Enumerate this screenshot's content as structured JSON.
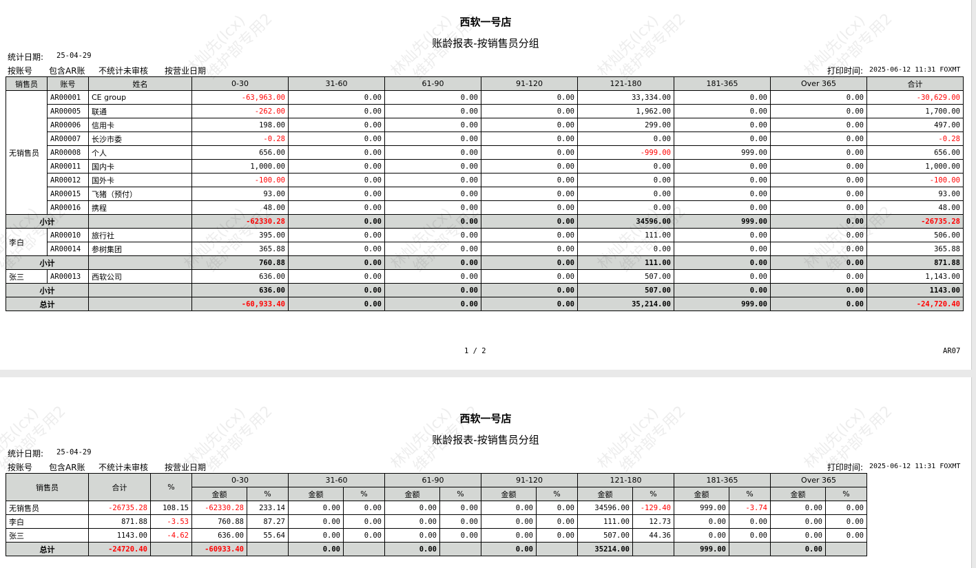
{
  "watermark": {
    "line1": "林灿先(lcx)",
    "line2": "维护部专用2"
  },
  "pages": [
    {
      "store": "西软一号店",
      "title": "账龄报表-按销售员分组",
      "stat_date_label": "统计日期:",
      "stat_date": "25-04-29",
      "options": [
        "按账号",
        "包含AR账",
        "不统计未审核",
        "按营业日期"
      ],
      "print_time_label": "打印时间:",
      "print_time": "2025-06-12 11:31 FOXMT",
      "page_no": "1 / 2",
      "report_code": "AR07"
    },
    {
      "store": "西软一号店",
      "title": "账龄报表-按销售员分组",
      "stat_date_label": "统计日期:",
      "stat_date": "25-04-29",
      "options": [
        "按账号",
        "包含AR账",
        "不统计未审核",
        "按营业日期"
      ],
      "print_time_label": "打印时间:",
      "print_time": "2025-06-12 11:31 FOXMT"
    }
  ],
  "detail_table": {
    "headers": [
      "销售员",
      "账号",
      "姓名",
      "0-30",
      "31-60",
      "61-90",
      "91-120",
      "121-180",
      "181-365",
      "Over 365",
      "合计"
    ],
    "groups": [
      {
        "salesperson": "无销售员",
        "rows": [
          {
            "account": "AR00001",
            "name": "CE group",
            "values": [
              "-63,963.00",
              "0.00",
              "0.00",
              "0.00",
              "33,334.00",
              "0.00",
              "0.00",
              "-30,629.00"
            ]
          },
          {
            "account": "AR00005",
            "name": "联通",
            "values": [
              "-262.00",
              "0.00",
              "0.00",
              "0.00",
              "1,962.00",
              "0.00",
              "0.00",
              "1,700.00"
            ]
          },
          {
            "account": "AR00006",
            "name": "信用卡",
            "values": [
              "198.00",
              "0.00",
              "0.00",
              "0.00",
              "299.00",
              "0.00",
              "0.00",
              "497.00"
            ]
          },
          {
            "account": "AR00007",
            "name": "长沙市委",
            "values": [
              "-0.28",
              "0.00",
              "0.00",
              "0.00",
              "0.00",
              "0.00",
              "0.00",
              "-0.28"
            ]
          },
          {
            "account": "AR00008",
            "name": "个人",
            "values": [
              "656.00",
              "0.00",
              "0.00",
              "0.00",
              "-999.00",
              "999.00",
              "0.00",
              "656.00"
            ]
          },
          {
            "account": "AR00011",
            "name": "国内卡",
            "values": [
              "1,000.00",
              "0.00",
              "0.00",
              "0.00",
              "0.00",
              "0.00",
              "0.00",
              "1,000.00"
            ]
          },
          {
            "account": "AR00012",
            "name": "国外卡",
            "values": [
              "-100.00",
              "0.00",
              "0.00",
              "0.00",
              "0.00",
              "0.00",
              "0.00",
              "-100.00"
            ]
          },
          {
            "account": "AR00015",
            "name": "飞猪（预付）",
            "values": [
              "93.00",
              "0.00",
              "0.00",
              "0.00",
              "0.00",
              "0.00",
              "0.00",
              "93.00"
            ]
          },
          {
            "account": "AR00016",
            "name": "携程",
            "values": [
              "48.00",
              "0.00",
              "0.00",
              "0.00",
              "0.00",
              "0.00",
              "0.00",
              "48.00"
            ]
          }
        ],
        "subtotal_label": "小计",
        "subtotal": [
          "-62330.28",
          "0.00",
          "0.00",
          "0.00",
          "34596.00",
          "999.00",
          "0.00",
          "-26735.28"
        ]
      },
      {
        "salesperson": "李白",
        "rows": [
          {
            "account": "AR00010",
            "name": "旅行社",
            "values": [
              "395.00",
              "0.00",
              "0.00",
              "0.00",
              "111.00",
              "0.00",
              "0.00",
              "506.00"
            ]
          },
          {
            "account": "AR00014",
            "name": "参树集团",
            "values": [
              "365.88",
              "0.00",
              "0.00",
              "0.00",
              "0.00",
              "0.00",
              "0.00",
              "365.88"
            ]
          }
        ],
        "subtotal_label": "小计",
        "subtotal": [
          "760.88",
          "0.00",
          "0.00",
          "0.00",
          "111.00",
          "0.00",
          "0.00",
          "871.88"
        ]
      },
      {
        "salesperson": "张三",
        "rows": [
          {
            "account": "AR00013",
            "name": "西软公司",
            "values": [
              "636.00",
              "0.00",
              "0.00",
              "0.00",
              "507.00",
              "0.00",
              "0.00",
              "1,143.00"
            ]
          }
        ],
        "subtotal_label": "小计",
        "subtotal": [
          "636.00",
          "0.00",
          "0.00",
          "0.00",
          "507.00",
          "0.00",
          "0.00",
          "1143.00"
        ]
      }
    ],
    "total_label": "总计",
    "total": [
      "-60,933.40",
      "0.00",
      "0.00",
      "0.00",
      "35,214.00",
      "999.00",
      "0.00",
      "-24,720.40"
    ]
  },
  "summary_table": {
    "headers": {
      "salesperson": "销售员",
      "total": "合计",
      "pct": "%",
      "buckets": [
        "0-30",
        "31-60",
        "61-90",
        "91-120",
        "121-180",
        "181-365",
        "Over 365"
      ],
      "amount": "金额",
      "bucket_pct": "%"
    },
    "rows": [
      {
        "salesperson": "无销售员",
        "values": [
          "-26735.28",
          "108.15",
          "-62330.28",
          "233.14",
          "0.00",
          "0.00",
          "0.00",
          "0.00",
          "0.00",
          "0.00",
          "34596.00",
          "-129.40",
          "999.00",
          "-3.74",
          "0.00",
          "0.00"
        ]
      },
      {
        "salesperson": "李白",
        "values": [
          "871.88",
          "-3.53",
          "760.88",
          "87.27",
          "0.00",
          "0.00",
          "0.00",
          "0.00",
          "0.00",
          "0.00",
          "111.00",
          "12.73",
          "0.00",
          "0.00",
          "0.00",
          "0.00"
        ]
      },
      {
        "salesperson": "张三",
        "values": [
          "1143.00",
          "-4.62",
          "636.00",
          "55.64",
          "0.00",
          "0.00",
          "0.00",
          "0.00",
          "0.00",
          "0.00",
          "507.00",
          "44.36",
          "0.00",
          "0.00",
          "0.00",
          "0.00"
        ]
      }
    ],
    "total_label": "总计",
    "total": [
      "-24720.40",
      "",
      "-60933.40",
      "",
      "0.00",
      "",
      "0.00",
      "",
      "0.00",
      "",
      "35214.00",
      "",
      "999.00",
      "",
      "0.00",
      ""
    ]
  }
}
